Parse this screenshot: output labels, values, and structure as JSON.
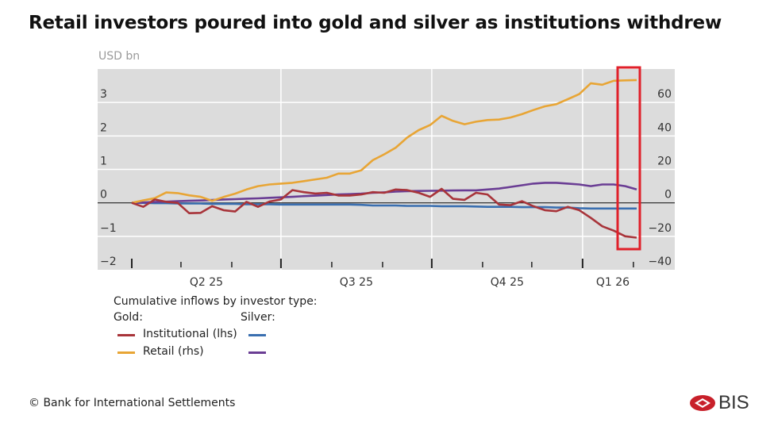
{
  "title": "Retail investors poured into gold and silver as institutions withdrew",
  "footer": "© Bank for International Settlements",
  "logo_text": "BIS",
  "chart_data": {
    "type": "line",
    "title": "Retail investors poured into gold and silver as institutions withdrew",
    "unit_label": "USD bn",
    "ylim_left": [
      -2,
      4
    ],
    "ylim_right": [
      -40,
      80
    ],
    "left_ticks": [
      3,
      2,
      1,
      0,
      -1,
      -2
    ],
    "right_ticks": [
      60,
      40,
      20,
      0,
      -20,
      -40
    ],
    "x_tick_labels": [
      "Q2 25",
      "Q3 25",
      "Q4 25",
      "Q1 26"
    ],
    "x_start": "2025-04-01",
    "x_step_days": 7,
    "grid": true,
    "legend_title": "Cumulative inflows by investor type:",
    "legend_groups": [
      "Gold:",
      "Silver:"
    ],
    "series": [
      {
        "name": "Institutional (lhs)",
        "group": "Gold",
        "axis": "left",
        "color": "#a8343a",
        "values": [
          0,
          -0.12,
          0.1,
          0.03,
          0,
          -0.31,
          -0.3,
          -0.1,
          -0.22,
          -0.26,
          0.03,
          -0.12,
          0.04,
          0.1,
          0.38,
          0.32,
          0.28,
          0.3,
          0.22,
          0.22,
          0.25,
          0.32,
          0.3,
          0.4,
          0.38,
          0.3,
          0.18,
          0.42,
          0.12,
          0.09,
          0.3,
          0.25,
          -0.05,
          -0.07,
          0.05,
          -0.1,
          -0.22,
          -0.25,
          -0.12,
          -0.22,
          -0.45,
          -0.7,
          -0.83,
          -1.0,
          -1.04
        ]
      },
      {
        "name": "Retail (rhs)",
        "group": "Gold",
        "axis": "right",
        "color": "#e8a535",
        "values": [
          0,
          1.5,
          2.8,
          6.2,
          5.8,
          4.5,
          3.6,
          1.2,
          3.5,
          5.5,
          8,
          10,
          11,
          11.5,
          12,
          13,
          14,
          15,
          17.5,
          17.5,
          19.5,
          25.5,
          29,
          33,
          39,
          43.5,
          46.5,
          52,
          49,
          47,
          48.5,
          49.5,
          49.8,
          51,
          53,
          55.5,
          57.7,
          59,
          62,
          65,
          71.5,
          70.6,
          73,
          73.2,
          73.4
        ]
      },
      {
        "name": "Institutional (lhs)",
        "group": "Silver",
        "axis": "left",
        "color": "#3a6fb0",
        "values": [
          0,
          0,
          -0.01,
          -0.01,
          -0.02,
          -0.02,
          -0.02,
          -0.03,
          -0.03,
          -0.03,
          -0.04,
          -0.04,
          -0.04,
          -0.05,
          -0.05,
          -0.05,
          -0.05,
          -0.05,
          -0.05,
          -0.05,
          -0.06,
          -0.08,
          -0.08,
          -0.08,
          -0.09,
          -0.09,
          -0.09,
          -0.1,
          -0.1,
          -0.1,
          -0.11,
          -0.12,
          -0.12,
          -0.12,
          -0.13,
          -0.13,
          -0.13,
          -0.14,
          -0.14,
          -0.16,
          -0.17,
          -0.17,
          -0.17,
          -0.17,
          -0.17
        ]
      },
      {
        "name": "Retail (rhs)",
        "group": "Silver",
        "axis": "right",
        "color": "#6a3d94",
        "values": [
          0,
          0.2,
          0.5,
          0.7,
          1,
          1.2,
          1.4,
          1.7,
          2,
          2.2,
          2.5,
          2.7,
          3,
          3.3,
          3.6,
          4,
          4.3,
          4.7,
          5,
          5.2,
          5.5,
          6,
          6.3,
          6.7,
          7,
          7.1,
          7.2,
          7.3,
          7.4,
          7.5,
          7.5,
          8,
          8.5,
          9.5,
          10.5,
          11.5,
          12,
          12,
          11.5,
          11,
          10,
          11,
          11,
          10,
          8
        ]
      }
    ]
  }
}
